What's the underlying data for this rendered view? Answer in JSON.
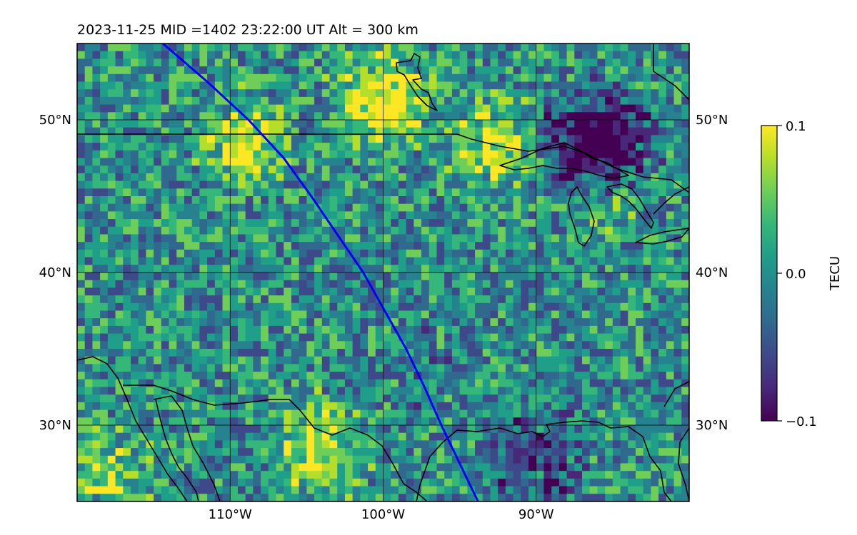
{
  "title": "2023-11-25  MID =1402    23:22:00  UT  Alt = 300 km",
  "map": {
    "lon_range": [
      -120,
      -80
    ],
    "lat_range": [
      25,
      55
    ],
    "grid": true,
    "lat_ticks": [
      {
        "value": 30,
        "label": "30°N"
      },
      {
        "value": 40,
        "label": "40°N"
      },
      {
        "value": 50,
        "label": "50°N"
      }
    ],
    "lon_ticks": [
      {
        "value": -110,
        "label": "110°W"
      },
      {
        "value": -100,
        "label": "100°W"
      },
      {
        "value": -90,
        "label": "90°W"
      }
    ],
    "coastline_color": "#000000",
    "grid_color": "#000000"
  },
  "chart_data": {
    "type": "heatmap",
    "field": "TEC perturbation",
    "cell_size_deg": 0.5,
    "value_range": [
      -0.1,
      0.1
    ],
    "track": {
      "color": "#0000ff",
      "points": [
        [
          -114.4,
          55
        ],
        [
          -111.5,
          52.5
        ],
        [
          -108.8,
          50
        ],
        [
          -106.5,
          47.5
        ],
        [
          -104.7,
          45
        ],
        [
          -103.0,
          42.5
        ],
        [
          -101.3,
          40
        ],
        [
          -99.9,
          37.5
        ],
        [
          -98.5,
          35
        ],
        [
          -97.3,
          32.5
        ],
        [
          -96.2,
          30
        ],
        [
          -95.0,
          27.5
        ],
        [
          -93.8,
          25
        ]
      ]
    }
  },
  "colorbar": {
    "label": "TECU",
    "ticks": [
      {
        "value": 0.1,
        "label": "0.1"
      },
      {
        "value": 0.0,
        "label": "0.0"
      },
      {
        "value": -0.1,
        "label": "−0.1"
      }
    ],
    "colormap": "viridis",
    "colors": [
      "#440154",
      "#482878",
      "#3e4989",
      "#31688e",
      "#26828e",
      "#1f9e89",
      "#35b779",
      "#6ece58",
      "#b5de2b",
      "#fde725"
    ]
  }
}
